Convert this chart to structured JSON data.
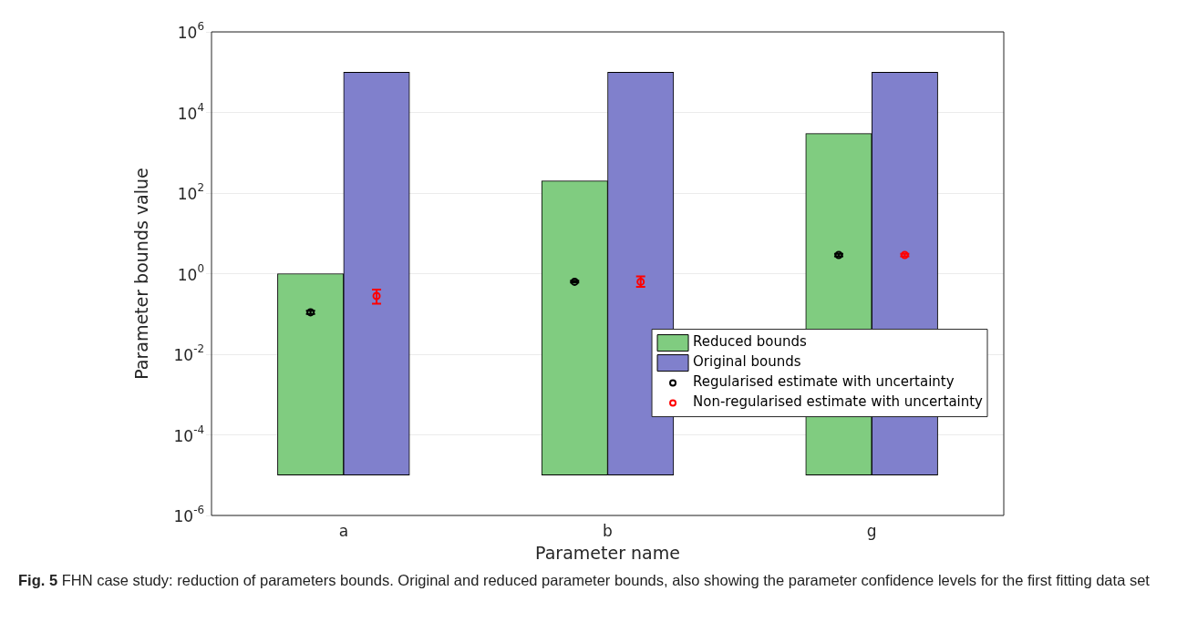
{
  "chart_data": {
    "type": "bar",
    "xlabel": "Parameter name",
    "ylabel": "Parameter bounds value",
    "categories": [
      "a",
      "b",
      "g"
    ],
    "series": [
      {
        "name": "Reduced bounds",
        "color": "#80cc80",
        "values": [
          1,
          200,
          3000
        ],
        "base": [
          1e-05,
          1e-05,
          1e-05
        ]
      },
      {
        "name": "Original bounds",
        "color": "#8080cc",
        "values": [
          100000,
          100000,
          100000
        ],
        "base": [
          1e-05,
          1e-05,
          1e-05
        ]
      },
      {
        "name": "Regularised estimate with uncertainty",
        "type": "scatter",
        "color": "#000000",
        "x": [
          "a",
          "b",
          "g"
        ],
        "values": [
          0.11,
          0.63,
          2.9
        ],
        "errors": [
          [
            0.1,
            0.12
          ],
          [
            0.6,
            0.67
          ],
          [
            2.7,
            3.1
          ]
        ]
      },
      {
        "name": "Non-regularised estimate with uncertainty",
        "type": "scatter",
        "color": "#ff0000",
        "x": [
          "a",
          "b",
          "g"
        ],
        "values": [
          0.28,
          0.63,
          2.9
        ],
        "errors": [
          [
            0.18,
            0.4
          ],
          [
            0.47,
            0.86
          ],
          [
            2.7,
            3.1
          ]
        ]
      }
    ],
    "log": "y",
    "ylim": [
      1e-06,
      1000000
    ],
    "yticks": [
      {
        "value": 1e-06,
        "label": "10$^{-6}$"
      },
      {
        "value": 0.0001,
        "label": "10$^{-4}$"
      },
      {
        "value": 0.01,
        "label": "10$^{-2}$"
      },
      {
        "value": 1,
        "label": "10$^{0}$"
      },
      {
        "value": 100,
        "label": "10$^{2}$"
      },
      {
        "value": 10000,
        "label": "10$^{4}$"
      },
      {
        "value": 1000000,
        "label": "10$^{6}$"
      }
    ],
    "grid": "y",
    "legend": "right",
    "marker": "circle",
    "annotations": [
      "Fig. 5",
      "FHN case study: reduction of parameters bounds. Original and reduced parameter bounds, also showing the parameter confidence levels for the first fitting data set"
    ]
  }
}
